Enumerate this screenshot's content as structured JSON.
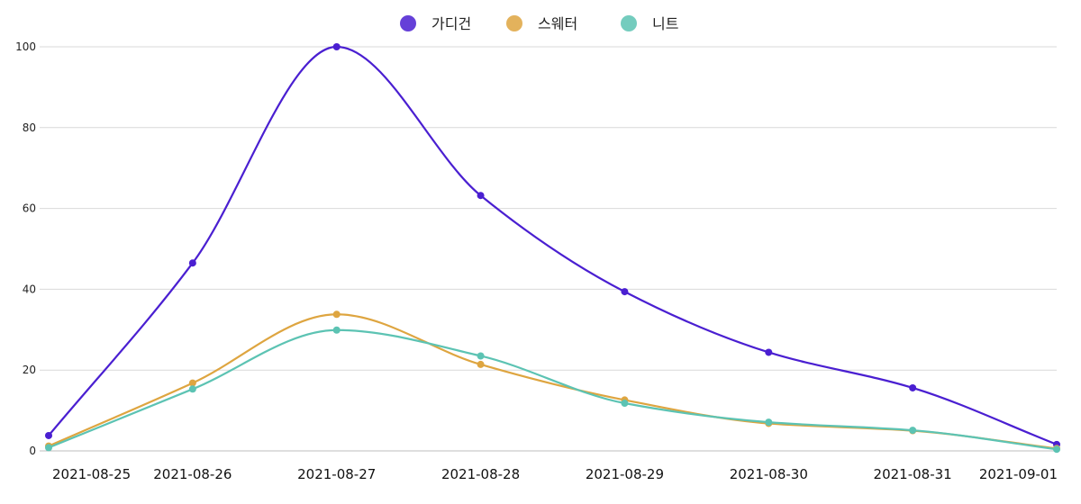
{
  "chart_data": {
    "type": "line",
    "title": "",
    "xlabel": "",
    "ylabel": "",
    "categories": [
      "2021-08-25",
      "2021-08-26",
      "2021-08-27",
      "2021-08-28",
      "2021-08-29",
      "2021-08-30",
      "2021-08-31",
      "2021-09-01"
    ],
    "ylim": [
      0,
      100
    ],
    "yticks": [
      0,
      20,
      40,
      60,
      80,
      100
    ],
    "grid": true,
    "legend_position": "top-center",
    "series": [
      {
        "name": "가디건",
        "color": "#4a1fd1",
        "values": [
          3.8,
          46.5,
          100,
          63.2,
          39.4,
          24.4,
          15.6,
          1.6
        ]
      },
      {
        "name": "스웨터",
        "color": "#dea540",
        "values": [
          1.2,
          16.8,
          33.8,
          21.4,
          12.6,
          6.8,
          5.0,
          0.6
        ]
      },
      {
        "name": "니트",
        "color": "#5cc3b3",
        "values": [
          0.8,
          15.3,
          29.9,
          23.5,
          11.8,
          7.1,
          5.1,
          0.4
        ]
      }
    ]
  }
}
